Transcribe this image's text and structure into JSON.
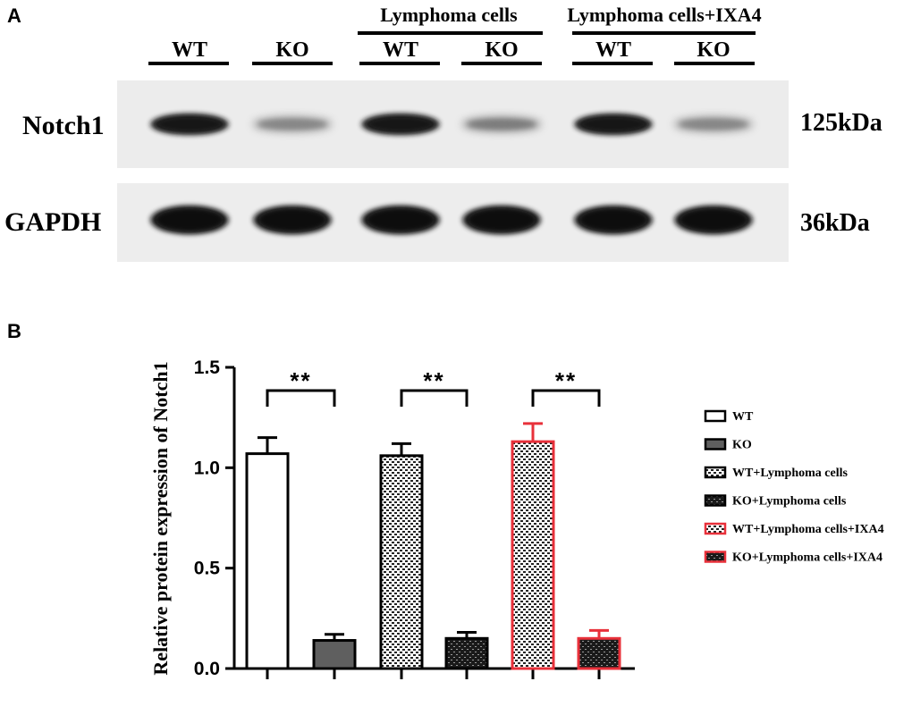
{
  "panel_a": {
    "letter": "A",
    "group_labels": [
      "Lymphoma cells",
      "Lymphoma cells+IXA4"
    ],
    "lane_labels": [
      "WT",
      "KO",
      "WT",
      "KO",
      "WT",
      "KO"
    ],
    "proteins": [
      {
        "name": "Notch1",
        "mw": "125kDa",
        "band_intensity": [
          0.95,
          0.45,
          0.95,
          0.5,
          0.95,
          0.45
        ]
      },
      {
        "name": "GAPDH",
        "mw": "36kDa",
        "band_intensity": [
          1,
          1,
          1,
          1,
          1,
          1
        ]
      }
    ]
  },
  "panel_b": {
    "letter": "B"
  },
  "chart_data": {
    "type": "bar",
    "title": "",
    "xlabel": "",
    "ylabel": "Relative protein expression of Notch1",
    "ylim": [
      0,
      1.5
    ],
    "yticks": [
      "0.0",
      "0.5",
      "1.0",
      "1.5"
    ],
    "categories": [
      "WT",
      "KO",
      "WT+Lymphoma cells",
      "KO+Lymphoma cells",
      "WT+Lymphoma cells+IXA4",
      "KO+Lymphoma cells+IXA4"
    ],
    "values": [
      1.07,
      0.14,
      1.06,
      0.15,
      1.13,
      0.15
    ],
    "errors": [
      0.08,
      0.03,
      0.06,
      0.03,
      0.09,
      0.04
    ],
    "styles": [
      {
        "fill": "white",
        "stroke": "#000000"
      },
      {
        "fill": "solid-gray",
        "stroke": "#000000"
      },
      {
        "fill": "white-hatch",
        "stroke": "#000000"
      },
      {
        "fill": "dark-hatch",
        "stroke": "#000000"
      },
      {
        "fill": "white-hatch",
        "stroke": "#e8303a"
      },
      {
        "fill": "dark-hatch",
        "stroke": "#e8303a"
      }
    ],
    "significance": [
      {
        "pair": [
          0,
          1
        ],
        "label": "**"
      },
      {
        "pair": [
          2,
          3
        ],
        "label": "**"
      },
      {
        "pair": [
          4,
          5
        ],
        "label": "**"
      }
    ],
    "legend_position": "right",
    "legend": [
      "WT",
      "KO",
      "WT+Lymphoma cells",
      "KO+Lymphoma cells",
      "WT+Lymphoma cells+IXA4",
      "KO+Lymphoma cells+IXA4"
    ]
  }
}
